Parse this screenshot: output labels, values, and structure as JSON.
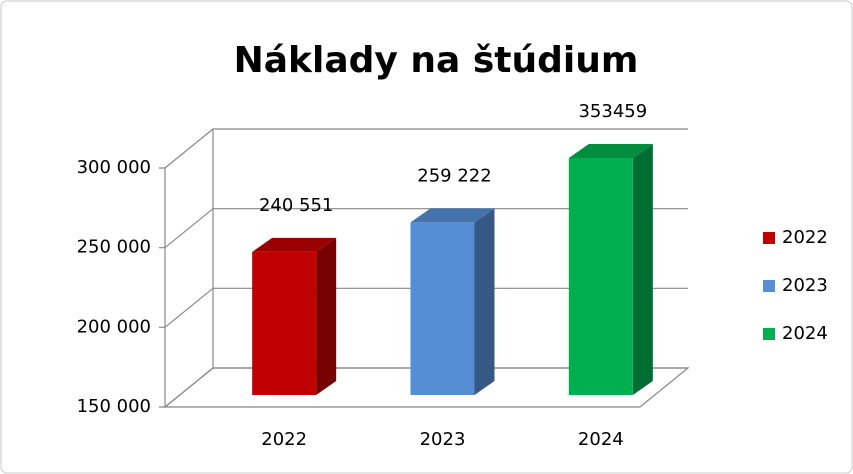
{
  "chart_data": {
    "type": "bar3d",
    "title": "Náklady na štúdium",
    "categories": [
      "2022",
      "2023",
      "2024"
    ],
    "values": [
      240551,
      259222,
      353459
    ],
    "value_labels": [
      "240 551",
      "259 222",
      "353459"
    ],
    "colors": [
      "#c00000",
      "#558ed5",
      "#00b050"
    ],
    "ylim": [
      150000,
      300000
    ],
    "yticks": [
      {
        "value": 150000,
        "label": "150 000"
      },
      {
        "value": 200000,
        "label": "200 000"
      },
      {
        "value": 250000,
        "label": "250 000"
      },
      {
        "value": 300000,
        "label": "300 000"
      }
    ],
    "grid": true,
    "legend": "right"
  }
}
